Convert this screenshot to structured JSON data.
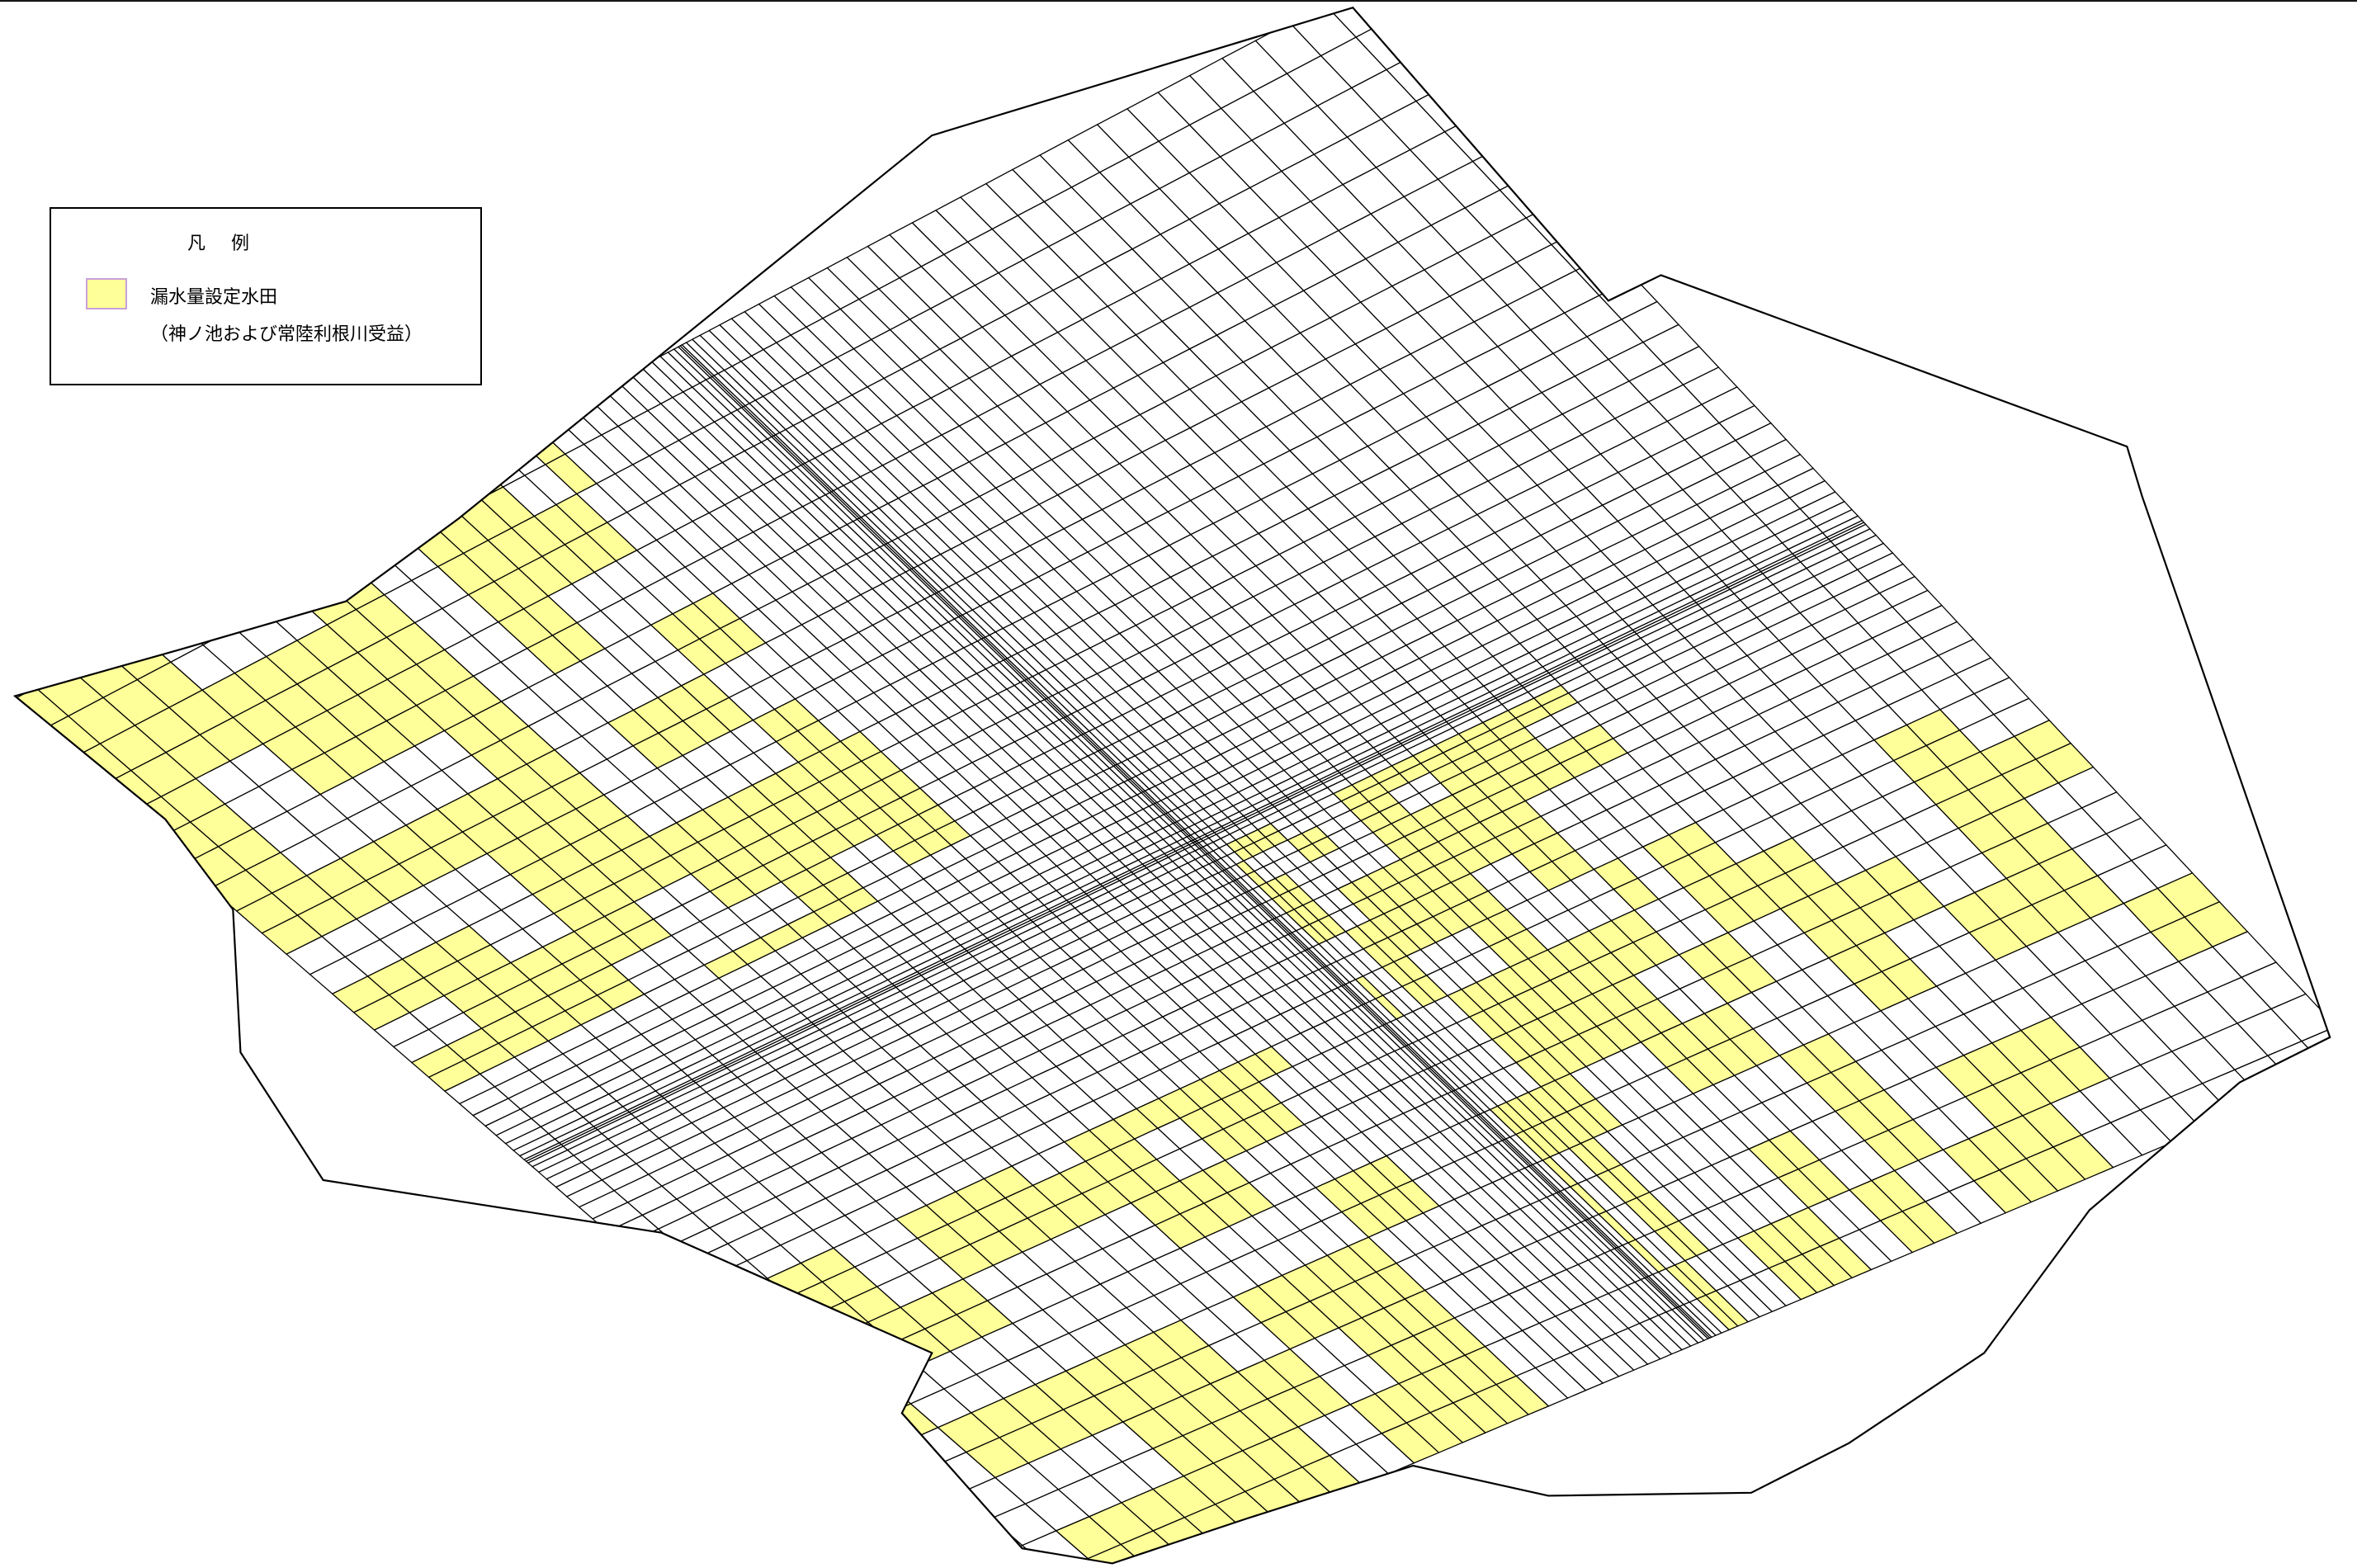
{
  "legend": {
    "title": "凡 例",
    "items": [
      {
        "label": "漏水量設定水田",
        "note": "（神ノ池および常陸利根川受益）"
      }
    ]
  }
}
